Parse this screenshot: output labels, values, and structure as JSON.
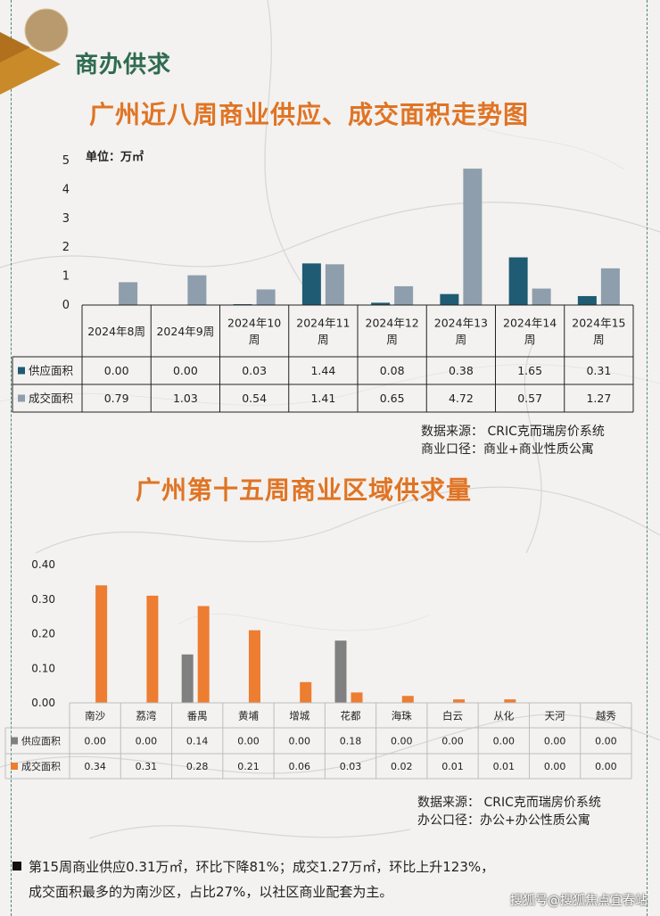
{
  "section_title": "商办供求",
  "chart1": {
    "title": "广州近八周商业供应、成交面积走势图",
    "unit_label": "单位：万㎡",
    "source_lines": [
      "数据来源： CRIC克而瑞房价系统",
      "商业口径：商业+商业性质公寓"
    ]
  },
  "chart2": {
    "title": "广州第十五周商业区域供求量",
    "source_lines": [
      "数据来源： CRIC克而瑞房价系统",
      "办公口径：办公+办公性质公寓"
    ]
  },
  "footnote": {
    "line1": "第15周商业供应0.31万㎡，环比下降81%；成交1.27万㎡，环比上升123%，",
    "line2": "成交面积最多的为南沙区，占比27%，以社区商业配套为主。"
  },
  "watermark": "搜狐号@搜狐焦点宜春站",
  "colors": {
    "supply1": "#1f5b73",
    "deal1": "#8e9eac",
    "supply2": "#808080",
    "deal2": "#ed7d31",
    "title": "#e07424",
    "section": "#2f6b4f"
  },
  "chart_data": [
    {
      "type": "bar",
      "title": "广州近八周商业供应、成交面积走势图",
      "ylabel": "单位：万㎡",
      "ylim": [
        0,
        5
      ],
      "yticks": [
        "0",
        "1",
        "2",
        "3",
        "4",
        "5"
      ],
      "categories": [
        [
          "2024年8周"
        ],
        [
          "2024年9周"
        ],
        [
          "2024年10",
          "周"
        ],
        [
          "2024年11",
          "周"
        ],
        [
          "2024年12",
          "周"
        ],
        [
          "2024年13",
          "周"
        ],
        [
          "2024年14",
          "周"
        ],
        [
          "2024年15",
          "周"
        ]
      ],
      "series": [
        {
          "name": "供应面积",
          "values": [
            0.0,
            0.0,
            0.03,
            1.44,
            0.08,
            0.38,
            1.65,
            0.31
          ],
          "labels": [
            "0.00",
            "0.00",
            "0.03",
            "1.44",
            "0.08",
            "0.38",
            "1.65",
            "0.31"
          ]
        },
        {
          "name": "成交面积",
          "values": [
            0.79,
            1.03,
            0.54,
            1.41,
            0.65,
            4.72,
            0.57,
            1.27
          ],
          "labels": [
            "0.79",
            "1.03",
            "0.54",
            "1.41",
            "0.65",
            "4.72",
            "0.57",
            "1.27"
          ]
        }
      ],
      "legend": "table-left",
      "grid": false
    },
    {
      "type": "bar",
      "title": "广州第十五周商业区域供求量",
      "ylim": [
        0,
        0.4
      ],
      "yticks": [
        "0.00",
        "0.10",
        "0.20",
        "0.30",
        "0.40"
      ],
      "categories": [
        "南沙",
        "荔湾",
        "番禺",
        "黄埔",
        "增城",
        "花都",
        "海珠",
        "白云",
        "从化",
        "天河",
        "越秀"
      ],
      "series": [
        {
          "name": "供应面积",
          "values": [
            0.0,
            0.0,
            0.14,
            0.0,
            0.0,
            0.18,
            0.0,
            0.0,
            0.0,
            0.0,
            0.0
          ],
          "labels": [
            "0.00",
            "0.00",
            "0.14",
            "0.00",
            "0.00",
            "0.18",
            "0.00",
            "0.00",
            "0.00",
            "0.00",
            "0.00"
          ]
        },
        {
          "name": "成交面积",
          "values": [
            0.34,
            0.31,
            0.28,
            0.21,
            0.06,
            0.03,
            0.02,
            0.01,
            0.01,
            0.0,
            0.0
          ],
          "labels": [
            "0.34",
            "0.31",
            "0.28",
            "0.21",
            "0.06",
            "0.03",
            "0.02",
            "0.01",
            "0.01",
            "0.00",
            "0.00"
          ]
        }
      ],
      "legend": "table-left",
      "grid": false
    }
  ]
}
